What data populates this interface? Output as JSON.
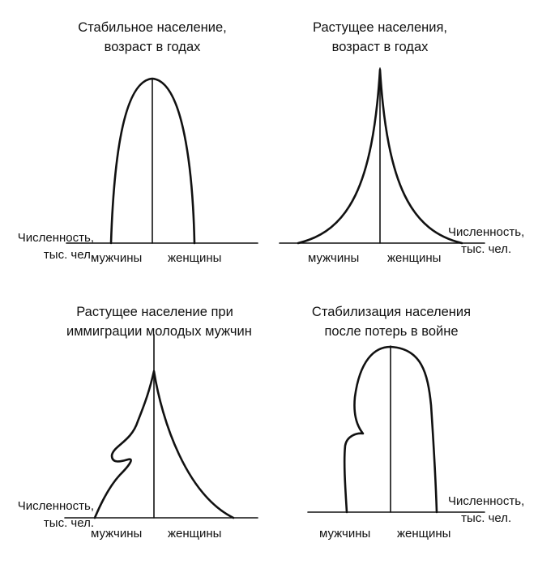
{
  "panels": {
    "stable": {
      "title": [
        "Стабильное население,",
        "возраст в годах"
      ],
      "count_label": [
        "Численность,",
        "тыс. чел."
      ],
      "men_label": "мужчины",
      "women_label": "женщины"
    },
    "growing": {
      "title": [
        "Растущее населения,",
        "возраст в годах"
      ],
      "count_label": [
        "Численность,",
        "тыс. чел."
      ],
      "men_label": "мужчины",
      "women_label": "женщины"
    },
    "immigration": {
      "title": [
        "Растущее население при",
        "иммиграции молодых мужчин"
      ],
      "count_label": [
        "Численность,",
        "тыс. чел."
      ],
      "men_label": "мужчины",
      "women_label": "женщины"
    },
    "war": {
      "title": [
        "Стабилизация населения",
        "после потерь в войне"
      ],
      "count_label": [
        "Численность,",
        "тыс. чел."
      ],
      "men_label": "мужчины",
      "women_label": "женщины"
    }
  }
}
